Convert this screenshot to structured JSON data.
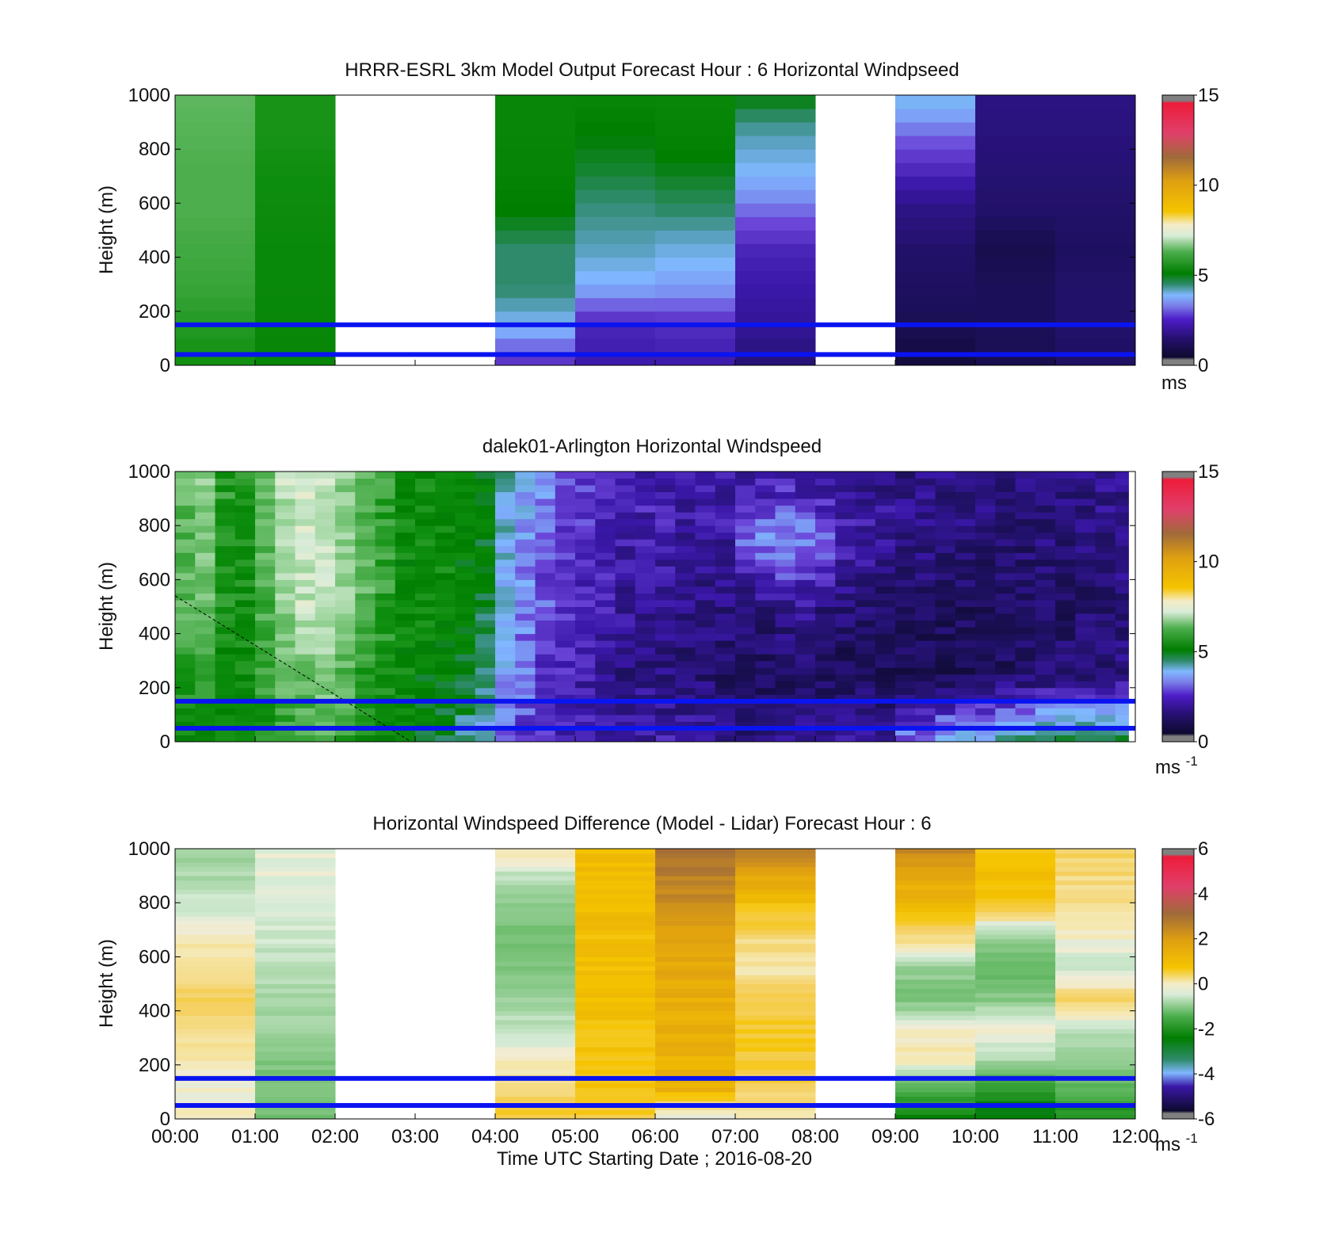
{
  "figure": {
    "x_ticks": [
      "00:00",
      "01:00",
      "02:00",
      "03:00",
      "04:00",
      "05:00",
      "06:00",
      "07:00",
      "08:00",
      "09:00",
      "10:00",
      "11:00",
      "12:00"
    ],
    "xlabel": "Time UTC  Starting Date ; 2016-08-20"
  },
  "chart_data": [
    {
      "type": "heatmap",
      "title": "HRRR-ESRL 3km Model Output   Forecast Hour : 6 Horizontal Windpseed",
      "ylabel": "Height (m)",
      "ylim": [
        0,
        1000
      ],
      "y_ticks": [
        "0",
        "200",
        "400",
        "600",
        "800",
        "1000"
      ],
      "xlim_hours": [
        0,
        12
      ],
      "colorbar": {
        "label": "ms",
        "ticks": [
          "0",
          "5",
          "10",
          "15"
        ],
        "range": [
          0,
          15
        ]
      },
      "reference_lines_m": [
        40,
        150
      ],
      "missing_hours": [
        [
          2,
          4
        ],
        [
          8,
          9
        ]
      ],
      "columns": [
        {
          "hour": 0,
          "speed_bottom_to_top": [
            5.2,
            5.4,
            5.6,
            5.7,
            5.8,
            5.8,
            5.9,
            6.0
          ]
        },
        {
          "hour": 1,
          "speed_bottom_to_top": [
            4.9,
            4.9,
            5.0,
            5.0,
            5.1,
            5.2,
            5.3,
            5.3
          ]
        },
        {
          "hour": 4,
          "speed_bottom_to_top": [
            2.2,
            3.4,
            4.2,
            4.2,
            4.6,
            4.8,
            4.9,
            4.9
          ]
        },
        {
          "hour": 5,
          "speed_bottom_to_top": [
            2.0,
            2.2,
            3.2,
            3.8,
            4.1,
            4.4,
            4.6,
            4.9
          ]
        },
        {
          "hour": 6,
          "speed_bottom_to_top": [
            2.0,
            2.3,
            3.1,
            3.6,
            4.2,
            4.5,
            4.8,
            4.9
          ]
        },
        {
          "hour": 7,
          "speed_bottom_to_top": [
            1.4,
            1.8,
            2.0,
            2.2,
            2.8,
            3.4,
            3.9,
            4.6
          ]
        },
        {
          "hour": 9,
          "speed_bottom_to_top": [
            0.6,
            1.0,
            1.2,
            1.3,
            1.6,
            2.2,
            2.8,
            3.6
          ]
        },
        {
          "hour": 10,
          "speed_bottom_to_top": [
            0.9,
            1.1,
            1.1,
            0.9,
            1.3,
            1.4,
            1.5,
            1.6
          ]
        },
        {
          "hour": 11,
          "speed_bottom_to_top": [
            1.2,
            1.3,
            1.3,
            1.2,
            1.3,
            1.4,
            1.5,
            1.6
          ]
        }
      ]
    },
    {
      "type": "heatmap",
      "title": "dalek01-Arlington  Horizontal Windspeed",
      "ylabel": "Height (m)",
      "ylim": [
        0,
        1000
      ],
      "y_ticks": [
        "0",
        "200",
        "400",
        "600",
        "800",
        "1000"
      ],
      "xlim_hours": [
        0,
        12
      ],
      "colorbar": {
        "label": "ms-1",
        "ticks": [
          "0",
          "5",
          "10",
          "15"
        ],
        "range": [
          0,
          15
        ]
      },
      "reference_lines_m": [
        50,
        150
      ],
      "profile_speed_by_quarter_hour_bottom_to_top": [
        [
          5.0,
          5.5,
          6.0,
          6.0,
          6.0
        ],
        [
          5.0,
          5.5,
          6.2,
          6.5,
          6.5
        ],
        [
          5.0,
          5.0,
          5.2,
          5.3,
          5.5
        ],
        [
          5.0,
          5.0,
          5.1,
          5.2,
          5.2
        ],
        [
          5.2,
          5.5,
          5.8,
          6.0,
          6.2
        ],
        [
          5.5,
          6.0,
          6.5,
          6.8,
          7.0
        ],
        [
          5.5,
          6.2,
          7.0,
          7.2,
          7.4
        ],
        [
          5.8,
          6.5,
          7.0,
          7.2,
          7.0
        ],
        [
          5.5,
          6.0,
          6.5,
          6.5,
          6.5
        ],
        [
          5.0,
          5.5,
          6.0,
          6.0,
          6.0
        ],
        [
          5.0,
          5.3,
          5.5,
          5.5,
          5.5
        ],
        [
          4.8,
          5.0,
          5.0,
          5.0,
          5.0
        ],
        [
          4.5,
          4.8,
          5.0,
          5.0,
          5.0
        ],
        [
          4.2,
          4.8,
          5.0,
          5.0,
          5.0
        ],
        [
          4.0,
          4.5,
          4.8,
          4.8,
          4.8
        ],
        [
          3.5,
          4.2,
          4.5,
          4.7,
          4.8
        ],
        [
          2.8,
          3.2,
          3.5,
          3.6,
          3.8
        ],
        [
          2.5,
          2.8,
          3.0,
          3.2,
          3.4
        ],
        [
          2.2,
          2.4,
          2.6,
          2.8,
          3.0
        ],
        [
          2.0,
          2.2,
          2.4,
          2.6,
          2.8
        ],
        [
          2.0,
          2.0,
          2.2,
          2.4,
          2.6
        ],
        [
          2.0,
          1.8,
          2.0,
          2.2,
          2.4
        ],
        [
          2.0,
          1.6,
          1.8,
          2.0,
          2.2
        ],
        [
          2.0,
          1.6,
          1.8,
          2.0,
          2.2
        ],
        [
          2.0,
          1.5,
          1.7,
          2.0,
          2.1
        ],
        [
          2.0,
          1.4,
          1.6,
          1.9,
          2.0
        ],
        [
          2.0,
          1.4,
          1.6,
          1.9,
          2.0
        ],
        [
          1.8,
          1.2,
          1.6,
          1.9,
          2.0
        ],
        [
          1.6,
          1.0,
          1.5,
          2.6,
          1.9
        ],
        [
          1.8,
          1.0,
          1.6,
          3.0,
          1.9
        ],
        [
          1.8,
          1.1,
          1.8,
          3.2,
          1.9
        ],
        [
          1.8,
          1.1,
          1.8,
          3.0,
          1.8
        ],
        [
          2.0,
          1.0,
          1.6,
          2.8,
          1.8
        ],
        [
          2.0,
          1.0,
          1.4,
          2.2,
          1.8
        ],
        [
          2.0,
          1.0,
          1.3,
          2.0,
          1.7
        ],
        [
          2.0,
          1.0,
          1.2,
          1.8,
          1.7
        ],
        [
          3.0,
          1.0,
          1.2,
          1.6,
          1.6
        ],
        [
          3.2,
          1.0,
          1.2,
          1.6,
          1.6
        ],
        [
          3.4,
          1.0,
          1.2,
          1.6,
          1.6
        ],
        [
          3.6,
          1.0,
          1.1,
          1.5,
          1.6
        ],
        [
          3.8,
          1.0,
          1.1,
          1.4,
          1.6
        ],
        [
          4.0,
          1.1,
          1.1,
          1.4,
          1.6
        ],
        [
          4.2,
          1.2,
          1.1,
          1.4,
          1.6
        ],
        [
          4.4,
          1.3,
          1.2,
          1.5,
          1.6
        ],
        [
          4.4,
          1.4,
          1.2,
          1.5,
          1.6
        ],
        [
          4.4,
          1.4,
          1.3,
          1.5,
          1.6
        ],
        [
          4.4,
          1.5,
          1.4,
          1.6,
          1.7
        ],
        [
          4.4,
          1.6,
          1.5,
          1.6,
          1.7
        ]
      ]
    },
    {
      "type": "heatmap",
      "title": "Horizontal Windspeed Difference (Model - Lidar) Forecast Hour : 6",
      "ylabel": "Height (m)",
      "ylim": [
        0,
        1000
      ],
      "y_ticks": [
        "0",
        "200",
        "400",
        "600",
        "800",
        "1000"
      ],
      "xlim_hours": [
        0,
        12
      ],
      "colorbar": {
        "label": "ms-1",
        "ticks": [
          "-6",
          "-4",
          "-2",
          "0",
          "2",
          "4",
          "6"
        ],
        "range": [
          -6,
          6
        ]
      },
      "reference_lines_m": [
        50,
        150
      ],
      "missing_hours": [
        [
          2,
          4
        ],
        [
          8,
          9
        ]
      ],
      "columns": [
        {
          "hour": 0,
          "diff_bottom_to_top": [
            0.2,
            0.0,
            0.3,
            0.6,
            0.8,
            0.6,
            0.2,
            -0.3,
            -0.6,
            -0.8
          ]
        },
        {
          "hour": 1,
          "diff_bottom_to_top": [
            -1.2,
            -1.2,
            -1.0,
            -0.8,
            -0.7,
            -0.5,
            -0.3,
            -0.2,
            -0.1,
            -0.1
          ]
        },
        {
          "hour": 4,
          "diff_bottom_to_top": [
            1.0,
            0.6,
            0.2,
            -0.4,
            -0.8,
            -1.0,
            -1.2,
            -1.0,
            -0.5,
            0.3
          ]
        },
        {
          "hour": 5,
          "diff_bottom_to_top": [
            1.0,
            1.2,
            1.2,
            1.2,
            1.3,
            1.3,
            1.3,
            1.4,
            1.4,
            1.4
          ]
        },
        {
          "hour": 6,
          "diff_bottom_to_top": [
            -0.3,
            1.6,
            1.6,
            1.7,
            1.7,
            1.8,
            2.0,
            2.3,
            2.6,
            2.8
          ]
        },
        {
          "hour": 7,
          "diff_bottom_to_top": [
            0.3,
            0.8,
            1.0,
            1.0,
            0.9,
            0.3,
            0.6,
            1.2,
            1.8,
            2.8
          ]
        },
        {
          "hour": 9,
          "diff_bottom_to_top": [
            -2.4,
            -1.6,
            0.4,
            0.1,
            -1.2,
            -0.8,
            0.6,
            1.4,
            1.8,
            2.4
          ]
        },
        {
          "hour": 10,
          "diff_bottom_to_top": [
            -2.6,
            -2.0,
            -0.6,
            0.1,
            -1.0,
            -1.4,
            -1.0,
            1.0,
            1.4,
            1.2
          ]
        },
        {
          "hour": 11,
          "diff_bottom_to_top": [
            -2.2,
            -1.5,
            -0.8,
            -0.4,
            0.8,
            -0.4,
            0.1,
            0.5,
            0.6,
            0.8
          ]
        }
      ]
    }
  ]
}
